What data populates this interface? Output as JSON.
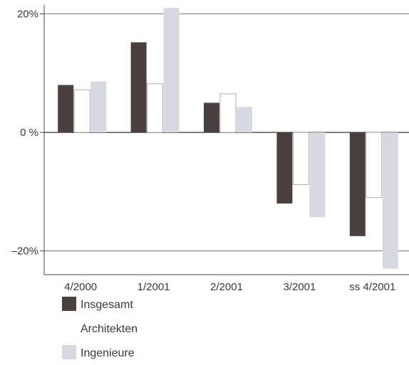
{
  "chart_data": {
    "type": "bar",
    "categories": [
      "4/2000",
      "1/2001",
      "2/2001",
      "3/2001",
      "ss 4/2001"
    ],
    "series": [
      {
        "name": "Insgesamt",
        "color": "#4a4040",
        "values": [
          8,
          15.2,
          5,
          -12,
          -17.5
        ]
      },
      {
        "name": "Architekten",
        "color": "#ffffff",
        "values": [
          7.2,
          8.2,
          6.5,
          -8.8,
          -11
        ]
      },
      {
        "name": "Ingenieure",
        "color": "#d8d8e2",
        "values": [
          8.6,
          21,
          4.3,
          -14.3,
          -23
        ]
      }
    ],
    "y_ticks": [
      {
        "value": 20,
        "label": "20%"
      },
      {
        "value": 0,
        "label": "0 %"
      },
      {
        "value": -20,
        "label": "–20%"
      }
    ],
    "ylim": [
      -24,
      21.5
    ],
    "grid": true,
    "legend_position": "bottom-left",
    "title": "",
    "xlabel": "",
    "ylabel": ""
  }
}
